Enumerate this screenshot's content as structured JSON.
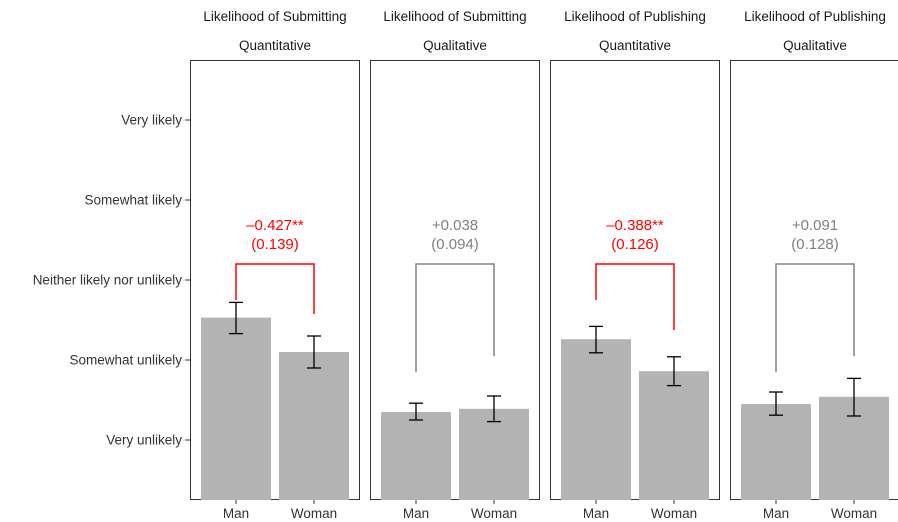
{
  "chart_data": {
    "type": "bar",
    "y_levels": [
      "Very unlikely",
      "Somewhat unlikely",
      "Neither likely nor unlikely",
      "Somewhat likely",
      "Very likely"
    ],
    "ylim": [
      0.3,
      5.8
    ],
    "grid": false,
    "colors": {
      "bar": "#b3b3b3",
      "error_bar": "#000000",
      "significant": "#ff0000",
      "not_significant": "#808080"
    },
    "panels": [
      {
        "title_line1": "Likelihood of Submitting",
        "title_line2": "Quantitative",
        "categories": [
          "Man",
          "Woman"
        ],
        "values": [
          2.53,
          2.1
        ],
        "error_low": [
          2.33,
          1.9
        ],
        "error_high": [
          2.72,
          2.3
        ],
        "estimate": "–0.427**",
        "se": "(0.139)",
        "significant": true
      },
      {
        "title_line1": "Likelihood of Submitting",
        "title_line2": "Qualitative",
        "categories": [
          "Man",
          "Woman"
        ],
        "values": [
          1.35,
          1.39
        ],
        "error_low": [
          1.25,
          1.23
        ],
        "error_high": [
          1.46,
          1.55
        ],
        "estimate": "+0.038",
        "se": "(0.094)",
        "significant": false
      },
      {
        "title_line1": "Likelihood of Publishing",
        "title_line2": "Quantitative",
        "categories": [
          "Man",
          "Woman"
        ],
        "values": [
          2.26,
          1.86
        ],
        "error_low": [
          2.09,
          1.68
        ],
        "error_high": [
          2.42,
          2.04
        ],
        "estimate": "–0.388**",
        "se": "(0.126)",
        "significant": true
      },
      {
        "title_line1": "Likelihood of Publishing",
        "title_line2": "Qualitative",
        "categories": [
          "Man",
          "Woman"
        ],
        "values": [
          1.45,
          1.54
        ],
        "error_low": [
          1.31,
          1.3
        ],
        "error_high": [
          1.6,
          1.77
        ],
        "estimate": "+0.091",
        "se": "(0.128)",
        "significant": false
      }
    ]
  }
}
